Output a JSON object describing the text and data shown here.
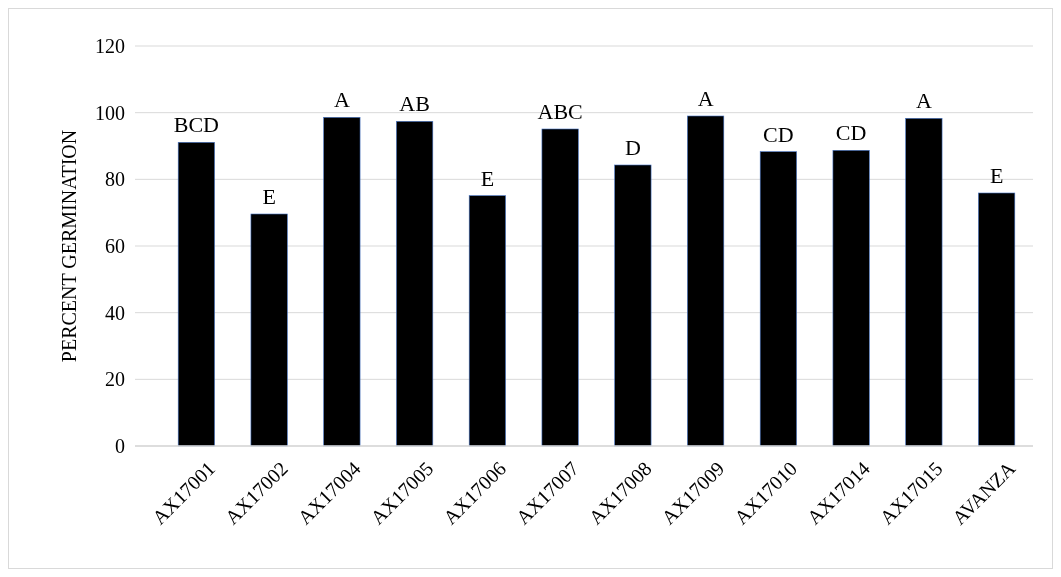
{
  "chart_data": {
    "type": "bar",
    "ylabel": "PERCENT GERMINATION",
    "categories": [
      "AX17001",
      "AX17002",
      "AX17004",
      "AX17005",
      "AX17006",
      "AX17007",
      "AX17008",
      "AX17009",
      "AX17010",
      "AX17014",
      "AX17015",
      "AVANZA"
    ],
    "values": [
      91.1,
      69.6,
      98.6,
      97.4,
      75.1,
      95.1,
      84.3,
      99.0,
      88.3,
      88.7,
      98.3,
      75.9
    ],
    "color": "#000000",
    "ylim": [
      0,
      120
    ],
    "yticks": [
      0,
      20,
      40,
      60,
      80,
      100,
      120
    ],
    "grid": "y",
    "annotations": [
      {
        "text": "BCD",
        "x": "AX17001",
        "y": 91.1
      },
      {
        "text": "E",
        "x": "AX17002",
        "y": 69.6
      },
      {
        "text": "A",
        "x": "AX17004",
        "y": 98.6
      },
      {
        "text": "AB",
        "x": "AX17005",
        "y": 97.4
      },
      {
        "text": "E",
        "x": "AX17006",
        "y": 75.1
      },
      {
        "text": "ABC",
        "x": "AX17007",
        "y": 95.1
      },
      {
        "text": "D",
        "x": "AX17008",
        "y": 84.3
      },
      {
        "text": "A",
        "x": "AX17009",
        "y": 99.0
      },
      {
        "text": "CD",
        "x": "AX17010",
        "y": 88.3
      },
      {
        "text": "CD",
        "x": "AX17014",
        "y": 88.7
      },
      {
        "text": "A",
        "x": "AX17015",
        "y": 98.3
      },
      {
        "text": "E",
        "x": "AVANZA",
        "y": 75.9
      }
    ]
  }
}
